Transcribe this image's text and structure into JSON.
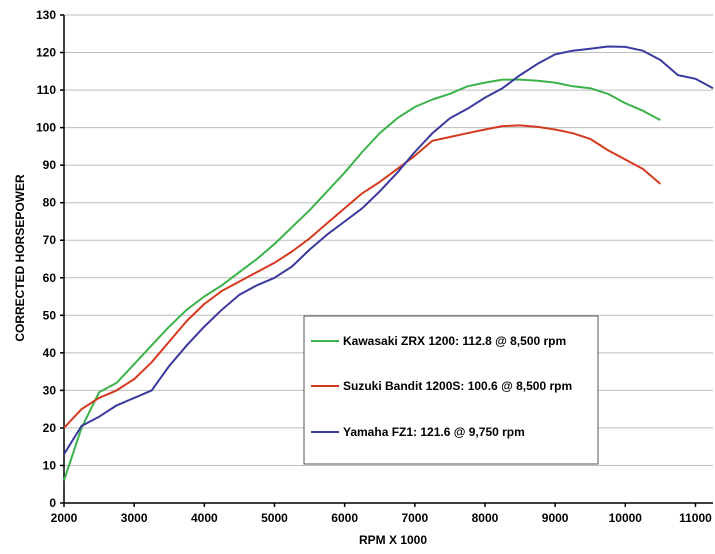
{
  "chart_data": {
    "type": "line",
    "xlabel": "RPM X 1000",
    "ylabel": "CORRECTED HORSEPOWER",
    "xlim": [
      2000,
      11250
    ],
    "ylim": [
      0,
      130
    ],
    "xticks": [
      2000,
      3000,
      4000,
      5000,
      6000,
      7000,
      8000,
      9000,
      10000,
      11000
    ],
    "yticks": [
      0,
      10,
      20,
      30,
      40,
      50,
      60,
      70,
      80,
      90,
      100,
      110,
      120,
      130
    ],
    "grid": "horizontal",
    "legend_position": "center-right",
    "series": [
      {
        "name": "Kawasaki ZRX 1200: 112.8 @ 8,500 rpm",
        "color": "#3cb24a",
        "x": [
          2000,
          2250,
          2500,
          2750,
          3000,
          3250,
          3500,
          3750,
          4000,
          4250,
          4500,
          4750,
          5000,
          5250,
          5500,
          5750,
          6000,
          6250,
          6500,
          6750,
          7000,
          7250,
          7500,
          7750,
          8000,
          8250,
          8500,
          8750,
          9000,
          9250,
          9500,
          9750,
          10000,
          10250,
          10500
        ],
        "y": [
          6,
          20,
          29.5,
          32,
          37,
          42,
          47,
          51.5,
          55,
          58,
          61.5,
          65,
          69,
          73.5,
          78,
          83,
          88,
          93.5,
          98.5,
          102.5,
          105.5,
          107.5,
          109,
          111,
          112,
          112.8,
          112.8,
          112.5,
          112,
          111,
          110.5,
          109,
          106.5,
          104.5,
          102
        ]
      },
      {
        "name": "Suzuki Bandit 1200S: 100.6 @ 8,500 rpm",
        "color": "#d53a1e",
        "x": [
          2000,
          2250,
          2500,
          2750,
          3000,
          3250,
          3500,
          3750,
          4000,
          4250,
          4500,
          4750,
          5000,
          5250,
          5500,
          5750,
          6000,
          6250,
          6500,
          6750,
          7000,
          7250,
          7500,
          7750,
          8000,
          8250,
          8500,
          8750,
          9000,
          9250,
          9500,
          9750,
          10000,
          10250,
          10500
        ],
        "y": [
          20,
          25,
          28,
          30,
          33,
          37.5,
          43,
          48.5,
          53,
          56.5,
          59,
          61.5,
          64,
          67,
          70.5,
          74.5,
          78.5,
          82.5,
          85.5,
          89,
          92.5,
          96.5,
          97.5,
          98.5,
          99.5,
          100.4,
          100.6,
          100.2,
          99.5,
          98.5,
          97,
          94,
          91.5,
          89,
          85
        ]
      },
      {
        "name": "Yamaha FZ1: 121.6 @ 9,750 rpm",
        "color": "#3a3a9e",
        "x": [
          2000,
          2250,
          2500,
          2750,
          3000,
          3250,
          3500,
          3750,
          4000,
          4250,
          4500,
          4750,
          5000,
          5250,
          5500,
          5750,
          6000,
          6250,
          6500,
          6750,
          7000,
          7250,
          7500,
          7750,
          8000,
          8250,
          8500,
          8750,
          9000,
          9250,
          9500,
          9750,
          10000,
          10250,
          10500,
          10750,
          11000,
          11250
        ],
        "y": [
          13,
          20.5,
          23,
          26,
          28,
          30,
          36.5,
          42,
          47,
          51.5,
          55.5,
          58,
          60,
          63,
          67.5,
          71.5,
          75,
          78.5,
          83,
          88,
          93.5,
          98.5,
          102.5,
          105,
          108,
          110.5,
          114,
          117,
          119.5,
          120.5,
          121,
          121.6,
          121.5,
          120.5,
          118,
          114,
          113,
          110.5
        ]
      }
    ]
  }
}
